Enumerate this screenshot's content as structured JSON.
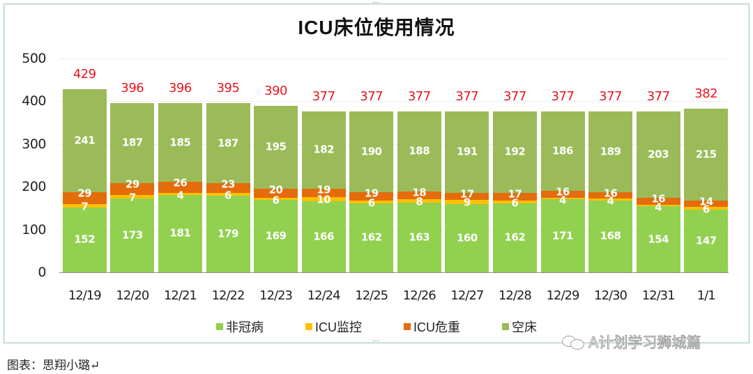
{
  "chart_data": {
    "type": "bar",
    "stacked": true,
    "title": "ICU床位使用情况",
    "xlabel": "",
    "ylabel": "",
    "ylim": [
      0,
      500
    ],
    "yticks": [
      0,
      100,
      200,
      300,
      400,
      500
    ],
    "grid": true,
    "legend_position": "bottom",
    "categories": [
      "12/19",
      "12/20",
      "12/21",
      "12/22",
      "12/23",
      "12/24",
      "12/25",
      "12/26",
      "12/27",
      "12/28",
      "12/29",
      "12/30",
      "12/31",
      "1/1"
    ],
    "series": [
      {
        "name": "非冠病",
        "color": "#92d050",
        "values": [
          152,
          173,
          181,
          179,
          169,
          166,
          162,
          163,
          160,
          162,
          171,
          168,
          154,
          147
        ]
      },
      {
        "name": "ICU监控",
        "color": "#ffc000",
        "values": [
          7,
          7,
          4,
          6,
          6,
          10,
          6,
          8,
          9,
          6,
          4,
          4,
          4,
          6
        ]
      },
      {
        "name": "ICU危重",
        "color": "#e46c0a",
        "values": [
          29,
          29,
          26,
          23,
          20,
          19,
          19,
          18,
          17,
          17,
          16,
          16,
          16,
          14
        ]
      },
      {
        "name": "空床",
        "color": "#9bbb59",
        "values": [
          241,
          187,
          185,
          187,
          195,
          182,
          190,
          188,
          191,
          192,
          186,
          189,
          203,
          215
        ]
      }
    ],
    "totals": [
      429,
      396,
      396,
      395,
      390,
      377,
      377,
      377,
      377,
      377,
      377,
      377,
      377,
      382
    ],
    "totals_color": "#e8151e"
  },
  "caption": "图表：思翔小璐↵",
  "watermark": "A计划学习狮城篇"
}
